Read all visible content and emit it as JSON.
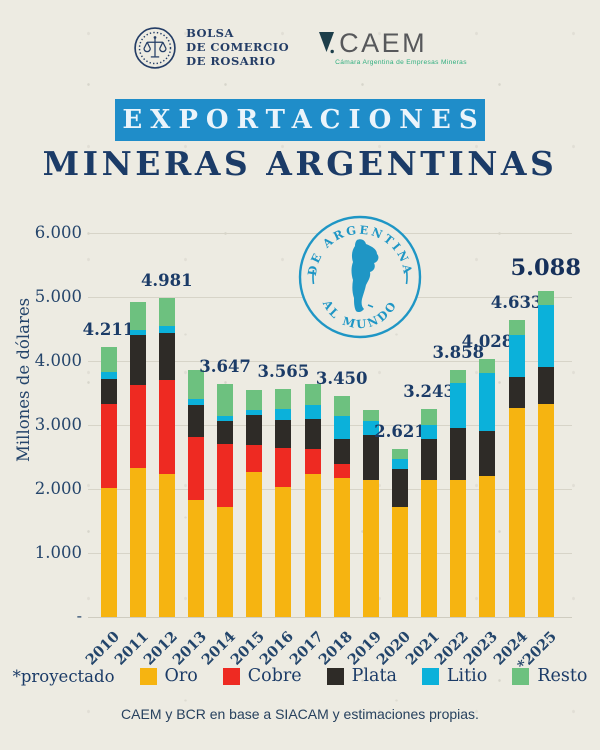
{
  "header": {
    "bcr": {
      "lines": [
        "BOLSA",
        "DE COMERCIO",
        "DE ROSARIO"
      ]
    },
    "caem": {
      "name": "CAEM",
      "tagline": "Cámara Argentina de Empresas Mineras"
    }
  },
  "title": {
    "banner": "EXPORTACIONES",
    "subtitle": "MINERAS ARGENTINAS"
  },
  "stamp": {
    "top": "DE ARGENTINA",
    "bottom": "AL MUNDO"
  },
  "chart_data": {
    "type": "bar",
    "stacked": true,
    "title": "Exportaciones Mineras Argentinas",
    "ylabel": "Millones de dólares",
    "ylim": [
      0,
      6000
    ],
    "grid": true,
    "zero_label": "-",
    "y_ticks": [
      {
        "value": 1000,
        "label": "1.000"
      },
      {
        "value": 2000,
        "label": "2.000"
      },
      {
        "value": 3000,
        "label": "3.000"
      },
      {
        "value": 4000,
        "label": "4.000"
      },
      {
        "value": 5000,
        "label": "5.000"
      },
      {
        "value": 6000,
        "label": "6.000"
      }
    ],
    "categories": [
      "2010",
      "2011",
      "2012",
      "2013",
      "2014",
      "2015",
      "2016",
      "2017",
      "2018",
      "2019",
      "2020",
      "2021",
      "2022",
      "2023",
      "2024",
      "*2025"
    ],
    "series": [
      {
        "name": "Oro",
        "color": "#f6b411",
        "values": [
          2021,
          2330,
          2241,
          1830,
          1717,
          2260,
          2035,
          2240,
          2170,
          2140,
          1721,
          2143,
          2138,
          2208,
          3263,
          3330
        ]
      },
      {
        "name": "Cobre",
        "color": "#ee2a22",
        "values": [
          1300,
          1290,
          1460,
          980,
          980,
          420,
          610,
          390,
          220,
          0,
          0,
          0,
          0,
          0,
          0,
          0
        ]
      },
      {
        "name": "Plata",
        "color": "#2e2b27",
        "values": [
          400,
          780,
          730,
          500,
          370,
          470,
          440,
          470,
          390,
          710,
          590,
          640,
          820,
          700,
          490,
          570
        ]
      },
      {
        "name": "Litio",
        "color": "#0bb1da",
        "values": [
          100,
          90,
          120,
          100,
          80,
          90,
          170,
          220,
          360,
          220,
          160,
          220,
          700,
          900,
          650,
          970
        ]
      },
      {
        "name": "Resto",
        "color": "#6dc17f",
        "values": [
          390,
          430,
          430,
          450,
          500,
          310,
          310,
          320,
          310,
          160,
          150,
          240,
          200,
          220,
          230,
          218
        ]
      }
    ],
    "value_labels": [
      "4.211",
      null,
      "4.981",
      null,
      "3.647",
      null,
      "3.565",
      null,
      "3.450",
      null,
      "2.621",
      "3.243",
      "3.858",
      "4.028",
      "4.633",
      "5.088"
    ],
    "highlight_index": 15,
    "legend_position": "bottom"
  },
  "legend": {
    "note": "*proyectado"
  },
  "footer": {
    "note": "CAEM y BCR en base a SIACAM y estimaciones propias."
  }
}
